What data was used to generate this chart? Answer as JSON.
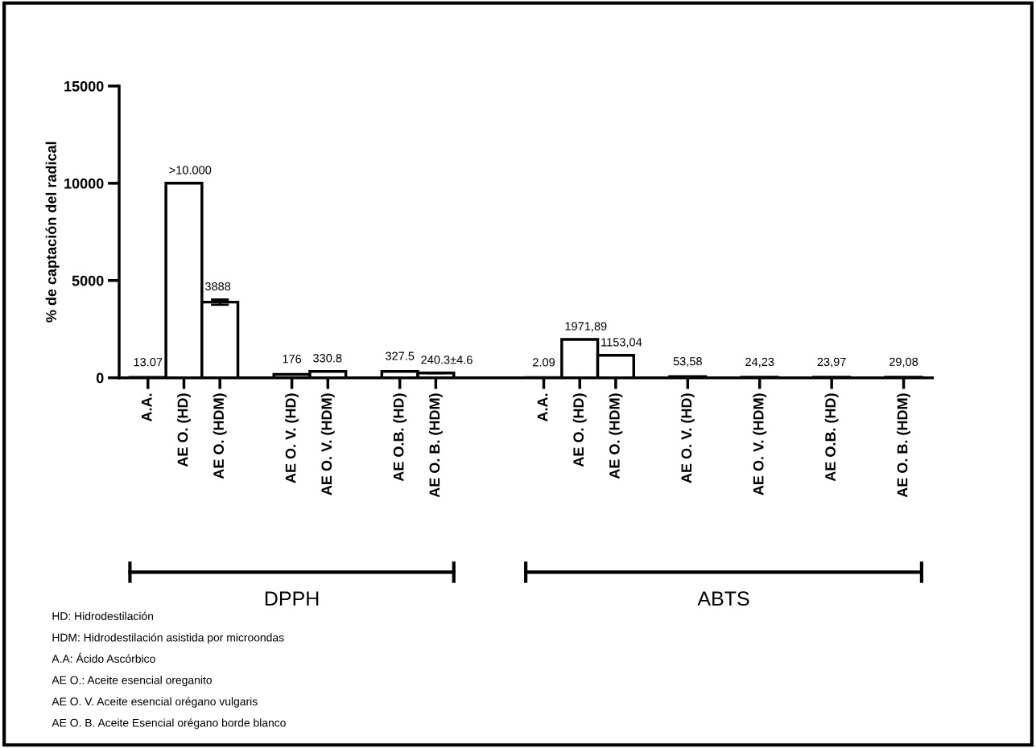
{
  "chart_data": {
    "type": "bar",
    "ylabel": "% de captación del radical",
    "categories": [
      "A.A.",
      "AE O. (HD)",
      "AE O. (HDM)",
      null,
      "AE O. V. (HD)",
      "AE O. V. (HDM)",
      null,
      "AE O.B. (HD)",
      "AE O. B. (HDM)",
      null,
      null,
      "A.A.",
      "AE O. (HD)",
      "AE O. (HDM)",
      null,
      "AE O. V. (HD)",
      null,
      "AE O. V. (HDM)",
      null,
      "AE O.B. (HD)",
      null,
      "AE O. B. (HDM)"
    ],
    "values": [
      13.07,
      10000,
      3888,
      null,
      176,
      330.8,
      null,
      327.5,
      240.3,
      null,
      null,
      2.09,
      1971.89,
      1153.04,
      null,
      53.58,
      null,
      24.23,
      null,
      23.97,
      null,
      29.08
    ],
    "value_labels": [
      "13.07",
      ">10.000",
      "3888",
      null,
      "176",
      "330.8",
      null,
      "327.5",
      "240.3±4.6",
      null,
      null,
      "2.09",
      "1971,89",
      "1153,04",
      null,
      "53,58",
      null,
      "24,23",
      null,
      "23,97",
      null,
      "29,08"
    ],
    "errors": [
      null,
      null,
      130,
      null,
      null,
      null,
      null,
      null,
      4.6,
      null,
      null,
      null,
      null,
      null,
      null,
      null,
      null,
      null,
      null,
      null,
      null,
      null
    ],
    "colors": [
      "#ffffff",
      "#ffffff",
      "#ffffff",
      null,
      "#ffffff",
      "#ffffff",
      null,
      "#ffffff",
      "#ffffff",
      null,
      null,
      "#ffffff",
      "#ffffff",
      "#ffffff",
      null,
      "#ffffff",
      null,
      "#ffffff",
      null,
      "#ffffff",
      null,
      "#ffffff"
    ],
    "ylim": [
      0,
      15000
    ],
    "yticks": [
      0,
      5000,
      10000,
      15000
    ],
    "grid": false,
    "legend": false,
    "annotations": [
      "DPPH",
      "ABTS",
      "HD: Hidrodestilación",
      "HDM: Hidrodestilación asistida por microondas",
      "A.A: Ácido Ascórbico",
      "AE O.: Aceite esencial oreganito",
      "AE O. V. Aceite esencial orégano vulgaris",
      "AE O. B. Aceite Esencial orégano borde blanco"
    ]
  }
}
